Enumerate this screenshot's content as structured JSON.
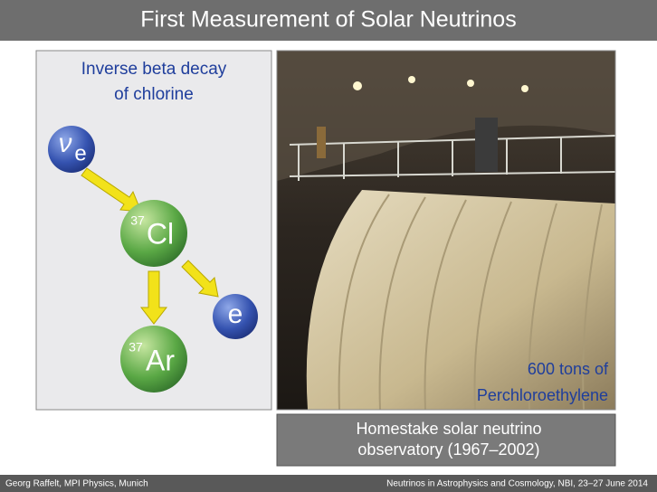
{
  "header": {
    "title": "First Measurement of Solar Neutrinos"
  },
  "diagram": {
    "title_lines": [
      "Inverse beta decay",
      "of chlorine"
    ],
    "particles": [
      {
        "symbol": "ν",
        "subscript": "e"
      },
      {
        "superscript": "37",
        "symbol": "Cl"
      },
      {
        "symbol": "e"
      },
      {
        "superscript": "37",
        "symbol": "Ar"
      }
    ]
  },
  "photo": {
    "overlay_lines": [
      "600 tons of",
      "Perchloroethylene"
    ],
    "caption_lines": [
      "Homestake solar neutrino",
      "observatory (1967–2002)"
    ]
  },
  "footer": {
    "left": "Georg Raffelt, MPI Physics, Munich",
    "right": "Neutrinos in Astrophysics and Cosmology, NBI, 23–27 June 2014"
  }
}
